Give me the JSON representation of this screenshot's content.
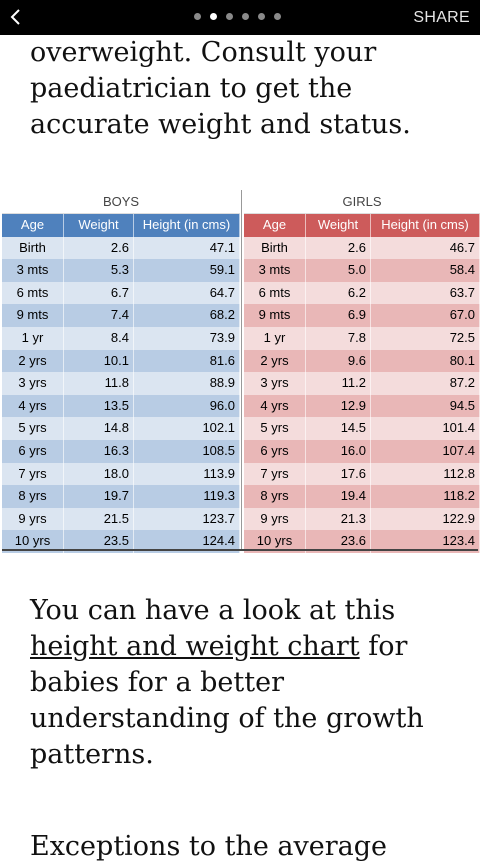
{
  "topbar": {
    "share_label": "SHARE",
    "page_dots": 6,
    "active_dot": 1
  },
  "article": {
    "para1": "overweight. Consult your paediatrician to get the accurate weight and status.",
    "para2_before": "You can have a look at this ",
    "para2_link": "height and weight chart",
    "para2_after": " for babies for a better understanding of the growth patterns.",
    "para3": "Exceptions to the average"
  },
  "chart_data": {
    "type": "table",
    "colors": {
      "boys_header": "#4f81bd",
      "girls_header": "#cd5b5b"
    },
    "boys": {
      "title": "BOYS",
      "columns": [
        "Age",
        "Weight",
        "Height (in cms)"
      ],
      "rows": [
        [
          "Birth",
          "2.6",
          "47.1"
        ],
        [
          "3 mts",
          "5.3",
          "59.1"
        ],
        [
          "6 mts",
          "6.7",
          "64.7"
        ],
        [
          "9 mts",
          "7.4",
          "68.2"
        ],
        [
          "1 yr",
          "8.4",
          "73.9"
        ],
        [
          "2 yrs",
          "10.1",
          "81.6"
        ],
        [
          "3 yrs",
          "11.8",
          "88.9"
        ],
        [
          "4 yrs",
          "13.5",
          "96.0"
        ],
        [
          "5 yrs",
          "14.8",
          "102.1"
        ],
        [
          "6 yrs",
          "16.3",
          "108.5"
        ],
        [
          "7 yrs",
          "18.0",
          "113.9"
        ],
        [
          "8 yrs",
          "19.7",
          "119.3"
        ],
        [
          "9 yrs",
          "21.5",
          "123.7"
        ],
        [
          "10 yrs",
          "23.5",
          "124.4"
        ]
      ]
    },
    "girls": {
      "title": "GIRLS",
      "columns": [
        "Age",
        "Weight",
        "Height (in cms)"
      ],
      "rows": [
        [
          "Birth",
          "2.6",
          "46.7"
        ],
        [
          "3 mts",
          "5.0",
          "58.4"
        ],
        [
          "6 mts",
          "6.2",
          "63.7"
        ],
        [
          "9 mts",
          "6.9",
          "67.0"
        ],
        [
          "1 yr",
          "7.8",
          "72.5"
        ],
        [
          "2 yrs",
          "9.6",
          "80.1"
        ],
        [
          "3 yrs",
          "11.2",
          "87.2"
        ],
        [
          "4 yrs",
          "12.9",
          "94.5"
        ],
        [
          "5 yrs",
          "14.5",
          "101.4"
        ],
        [
          "6 yrs",
          "16.0",
          "107.4"
        ],
        [
          "7 yrs",
          "17.6",
          "112.8"
        ],
        [
          "8 yrs",
          "19.4",
          "118.2"
        ],
        [
          "9 yrs",
          "21.3",
          "122.9"
        ],
        [
          "10 yrs",
          "23.6",
          "123.4"
        ]
      ]
    }
  }
}
